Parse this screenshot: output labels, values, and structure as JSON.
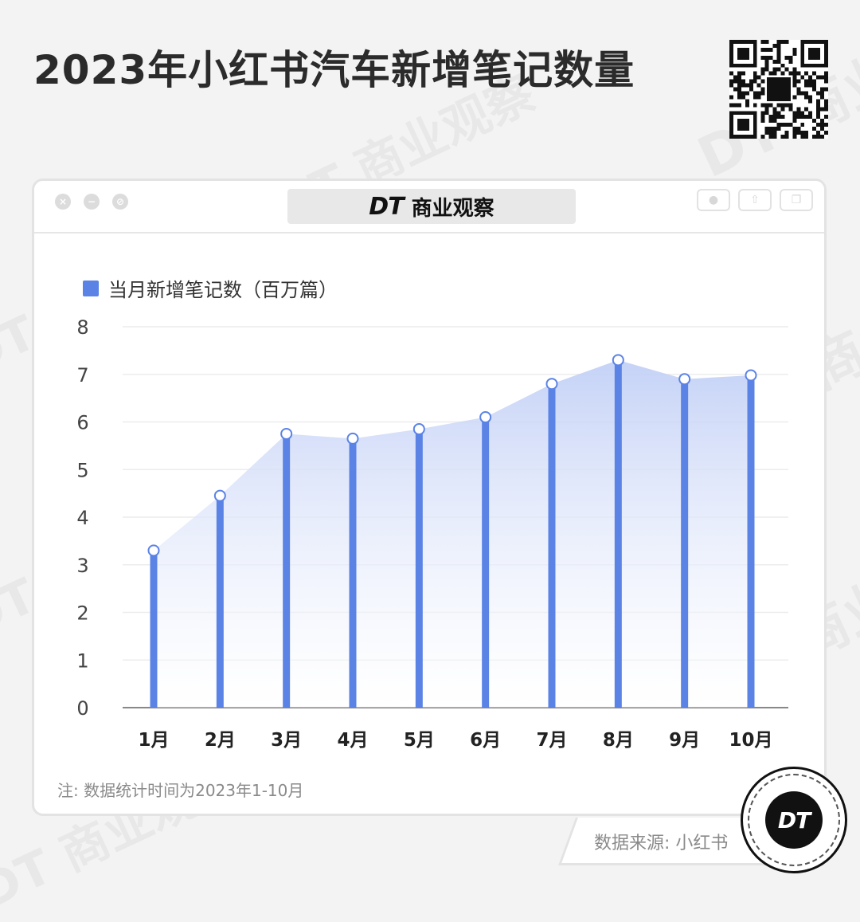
{
  "title": "2023年小红书汽车新增笔记数量",
  "window": {
    "brand_mark": "DT",
    "brand_name": "商业观察"
  },
  "legend_label": "当月新增笔记数（百万篇）",
  "note": "注: 数据统计时间为2023年1-10月",
  "source": "数据来源: 小红书",
  "badge_text": "DT",
  "watermark_text": "DT 商业观察",
  "colors": {
    "bar": "#5b83e6",
    "area_top": "#c7d4f7",
    "background": "#f3f3f3"
  },
  "chart_data": {
    "type": "bar",
    "categories": [
      "1月",
      "2月",
      "3月",
      "4月",
      "5月",
      "6月",
      "7月",
      "8月",
      "9月",
      "10月"
    ],
    "series": [
      {
        "name": "当月新增笔记数（百万篇）",
        "values": [
          3.3,
          4.45,
          5.75,
          5.65,
          5.85,
          6.1,
          6.8,
          7.3,
          6.9,
          6.98
        ]
      }
    ],
    "y_ticks": [
      0,
      1,
      2,
      3,
      4,
      5,
      6,
      7,
      8
    ],
    "ylim": [
      0,
      8
    ],
    "grid": true,
    "legend_position": "top-left"
  }
}
